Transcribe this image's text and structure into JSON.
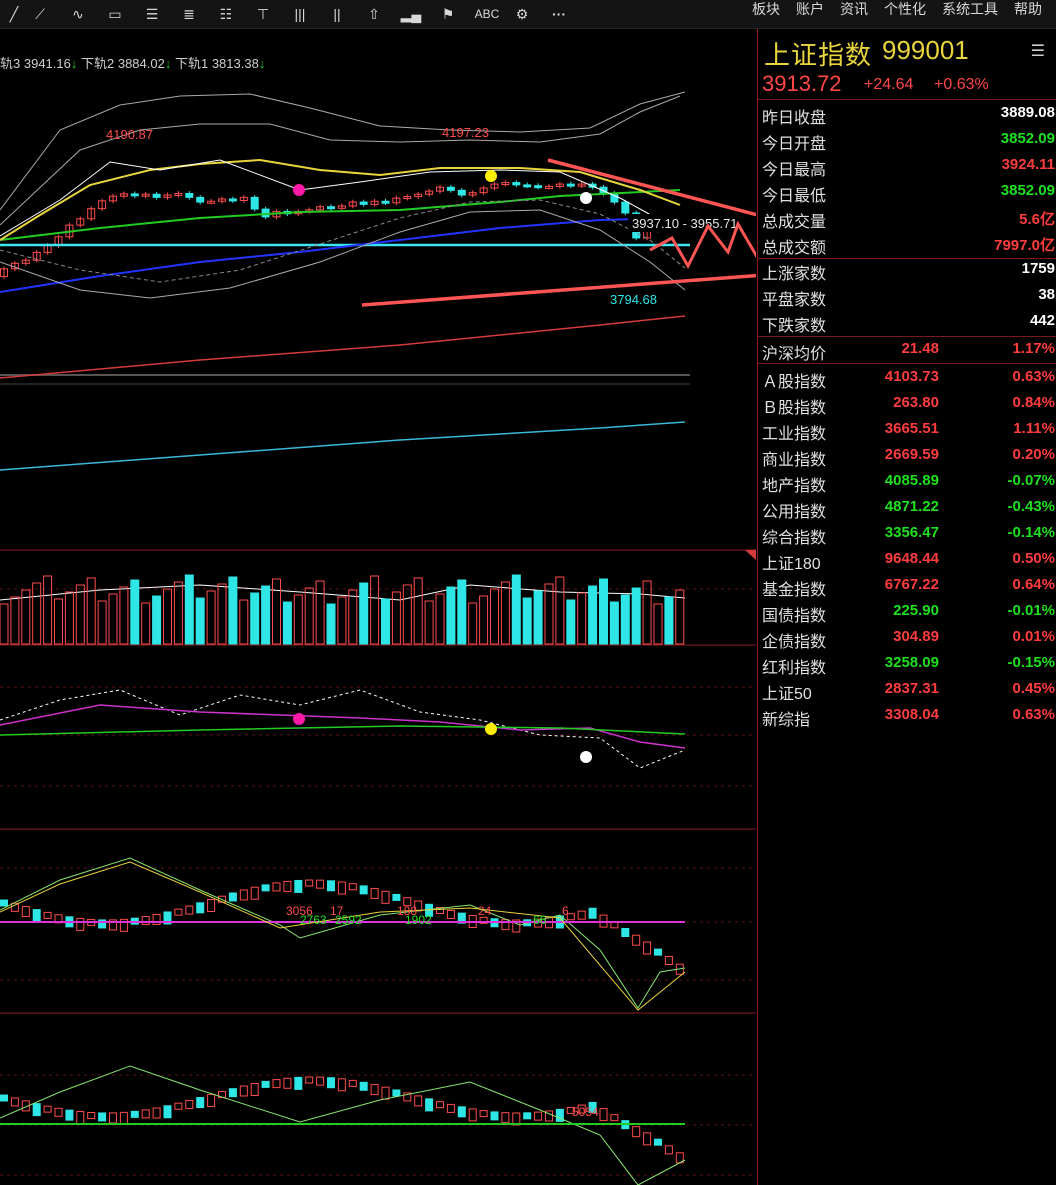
{
  "toolbar": {
    "tools": [
      "line-tool",
      "ray-tool",
      "wave-tool",
      "rect-tool",
      "fib-tool",
      "fib-tool-2",
      "channel-tool",
      "cross-tool",
      "vlines-tool",
      "vlines-tool-2",
      "arrow-tool",
      "bars-tool",
      "marker-tool"
    ],
    "text_tool_label": "ABC",
    "more_label": "···",
    "menu": [
      "板块",
      "账户",
      "资讯",
      "个性化",
      "系统工具",
      "帮助"
    ]
  },
  "legend": {
    "lb3": "轨3",
    "lb3_val": "3941.16",
    "lb2": "下轨2",
    "lb2_val": "3884.02",
    "lb1": "下轨1",
    "lb1_val": "3813.38"
  },
  "chart_labels": {
    "high1": "4190.87",
    "high2": "4197.23",
    "low1": "3794.68",
    "range": "3937.10 - 3955.71",
    "sub_a": "3056",
    "sub_b": "17",
    "sub_c": "2763",
    "sub_d": "2592",
    "sub_e": "188",
    "sub_f": "1902",
    "sub_g": "24",
    "sub_h": "66",
    "sub_i": "6",
    "sub_j": "5054"
  },
  "panel": {
    "name": "上证指数",
    "code": "999001",
    "price": "3913.72",
    "change": "+24.64",
    "change_pct": "+0.63%",
    "stats": [
      {
        "label": "昨日收盘",
        "value": "3889.08",
        "color": "white"
      },
      {
        "label": "今日开盘",
        "value": "3852.09",
        "color": "green"
      },
      {
        "label": "今日最高",
        "value": "3924.11",
        "color": "red"
      },
      {
        "label": "今日最低",
        "value": "3852.09",
        "color": "green"
      },
      {
        "label": "总成交量",
        "value": "5.6亿",
        "color": "red"
      },
      {
        "label": "总成交额",
        "value": "7997.0亿",
        "color": "red"
      },
      {
        "label": "上涨家数",
        "value": "1759",
        "color": "white"
      },
      {
        "label": "平盘家数",
        "value": "38",
        "color": "white"
      },
      {
        "label": "下跌家数",
        "value": "442",
        "color": "white"
      }
    ],
    "avg": {
      "label": "沪深均价",
      "value": "21.48",
      "pct": "1.17%"
    },
    "indices": [
      {
        "label": "Ａ股指数",
        "value": "4103.73",
        "pct": "0.63%",
        "color": "red"
      },
      {
        "label": "Ｂ股指数",
        "value": "263.80",
        "pct": "0.84%",
        "color": "red"
      },
      {
        "label": "工业指数",
        "value": "3665.51",
        "pct": "1.11%",
        "color": "red"
      },
      {
        "label": "商业指数",
        "value": "2669.59",
        "pct": "0.20%",
        "color": "red"
      },
      {
        "label": "地产指数",
        "value": "4085.89",
        "pct": "-0.07%",
        "color": "green"
      },
      {
        "label": "公用指数",
        "value": "4871.22",
        "pct": "-0.43%",
        "color": "green"
      },
      {
        "label": "综合指数",
        "value": "3356.47",
        "pct": "-0.14%",
        "color": "green"
      },
      {
        "label": "上证180",
        "value": "9648.44",
        "pct": "0.50%",
        "color": "red"
      },
      {
        "label": "基金指数",
        "value": "6767.22",
        "pct": "0.64%",
        "color": "red"
      },
      {
        "label": "国债指数",
        "value": "225.90",
        "pct": "-0.01%",
        "color": "green"
      },
      {
        "label": "企债指数",
        "value": "304.89",
        "pct": "0.01%",
        "color": "red"
      },
      {
        "label": "红利指数",
        "value": "3258.09",
        "pct": "-0.15%",
        "color": "green"
      },
      {
        "label": "上证50",
        "value": "2837.31",
        "pct": "0.45%",
        "color": "red"
      },
      {
        "label": "新综指",
        "value": "3308.04",
        "pct": "0.63%",
        "color": "red"
      }
    ]
  },
  "colors": {
    "up": "#ff3d3d",
    "down": "#2ee6e6",
    "green": "#1ee01e",
    "gold": "#e8d43c",
    "grid": "#8b1b1b"
  }
}
